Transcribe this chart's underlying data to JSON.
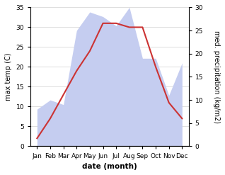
{
  "months": [
    "Jan",
    "Feb",
    "Mar",
    "Apr",
    "May",
    "Jun",
    "Jul",
    "Aug",
    "Sep",
    "Oct",
    "Nov",
    "Dec"
  ],
  "temperature": [
    2,
    7,
    13,
    19,
    24,
    31,
    31,
    30,
    30,
    20,
    11,
    7
  ],
  "precipitation": [
    8,
    10,
    9,
    25,
    29,
    28,
    26,
    30,
    19,
    19,
    11,
    18
  ],
  "temp_color": "#cc3333",
  "precip_fill_color": "#c5cdf0",
  "left_label": "max temp (C)",
  "right_label": "med. precipitation (kg/m2)",
  "xlabel": "date (month)",
  "ylim_left": [
    0,
    35
  ],
  "ylim_right": [
    0,
    30
  ],
  "yticks_left": [
    0,
    5,
    10,
    15,
    20,
    25,
    30,
    35
  ],
  "yticks_right": [
    0,
    5,
    10,
    15,
    20,
    25,
    30
  ],
  "grid_color": "#d0d0d0",
  "figsize": [
    3.18,
    2.47
  ],
  "dpi": 100
}
